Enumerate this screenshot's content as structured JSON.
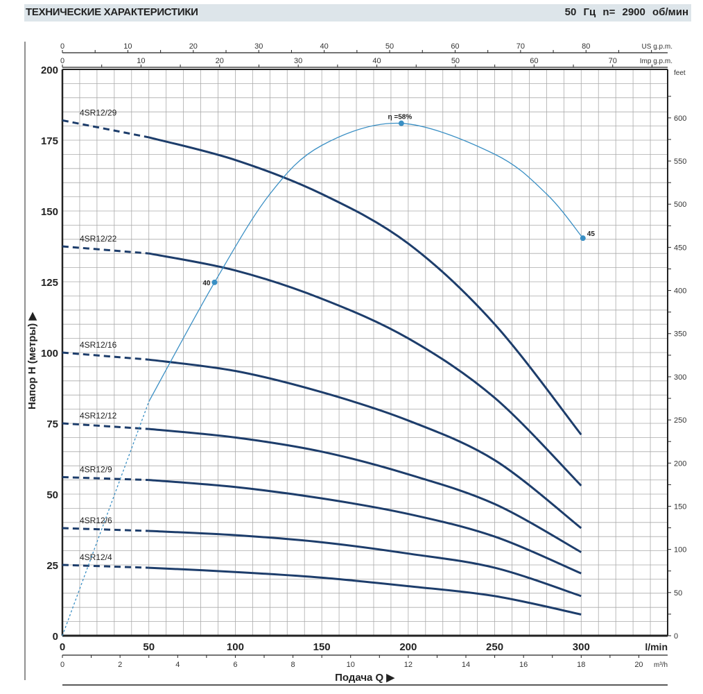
{
  "header": {
    "title": "ТЕХНИЧЕСКИЕ ХАРАКТЕРИСТИКИ",
    "subtitle": "50 Гц   n= 2900 об/мин"
  },
  "chart_data": {
    "type": "line",
    "ylabel": "Напор H (метры) ▶",
    "xlabel": "Подача Q ▶",
    "grid": true,
    "x_axis": {
      "unit": "l/min",
      "range": [
        0,
        350
      ],
      "ticks": [
        0,
        50,
        100,
        150,
        200,
        250,
        300
      ]
    },
    "y_axis": {
      "unit": "m",
      "range": [
        0,
        200
      ],
      "ticks": [
        0,
        25,
        50,
        75,
        100,
        125,
        150,
        175,
        200
      ]
    },
    "secondary_axes": {
      "us_gpm": {
        "unit": "US g.p.m.",
        "ticks": [
          0,
          10,
          20,
          30,
          40,
          50,
          60,
          70,
          80
        ]
      },
      "imp_gpm": {
        "unit": "Imp g.p.m.",
        "ticks": [
          0,
          10,
          20,
          30,
          40,
          50,
          60,
          70
        ]
      },
      "m3h": {
        "unit": "m³/h",
        "ticks": [
          0,
          2,
          4,
          6,
          8,
          10,
          12,
          14,
          16,
          18,
          20
        ]
      },
      "feet": {
        "unit": "feet",
        "ticks": [
          0,
          50,
          100,
          150,
          200,
          250,
          300,
          350,
          400,
          450,
          500,
          550,
          600
        ]
      }
    },
    "series": [
      {
        "name": "4SR12/29",
        "x": [
          0,
          50,
          100,
          150,
          200,
          250,
          300
        ],
        "y": [
          182,
          176,
          168,
          156,
          138.5,
          110,
          71
        ]
      },
      {
        "name": "4SR12/22",
        "x": [
          0,
          50,
          100,
          150,
          200,
          250,
          300
        ],
        "y": [
          137.5,
          135,
          129,
          119,
          105,
          84,
          53
        ]
      },
      {
        "name": "4SR12/16",
        "x": [
          0,
          50,
          100,
          150,
          200,
          250,
          300
        ],
        "y": [
          100,
          97.5,
          93.5,
          86,
          76,
          62,
          38
        ]
      },
      {
        "name": "4SR12/12",
        "x": [
          0,
          50,
          100,
          150,
          200,
          250,
          300
        ],
        "y": [
          75,
          73,
          70,
          65,
          57,
          46.5,
          29.5
        ]
      },
      {
        "name": "4SR12/9",
        "x": [
          0,
          50,
          100,
          150,
          200,
          250,
          300
        ],
        "y": [
          56,
          55,
          52.5,
          48.5,
          43,
          35,
          22
        ]
      },
      {
        "name": "4SR12/6",
        "x": [
          0,
          50,
          100,
          150,
          200,
          250,
          300
        ],
        "y": [
          38,
          37,
          35.5,
          33,
          29,
          24,
          14
        ]
      },
      {
        "name": "4SR12/4",
        "x": [
          0,
          50,
          100,
          150,
          200,
          250,
          300
        ],
        "y": [
          25,
          24,
          22.5,
          20.5,
          17.5,
          14,
          7.5
        ]
      }
    ],
    "dashed_until_x": 50,
    "efficiency": {
      "unit": "%",
      "x": [
        0,
        50,
        88,
        120,
        150,
        196,
        250,
        280,
        301
      ],
      "y": [
        0,
        26.5,
        40,
        50,
        55.5,
        58,
        54.5,
        50,
        45
      ],
      "labeled_points": [
        {
          "x": 88,
          "y": 40,
          "label": "40"
        },
        {
          "x": 196,
          "y": 58,
          "label": "η =58%"
        },
        {
          "x": 301,
          "y": 45,
          "label": "45"
        }
      ],
      "color": "#3a8fc4"
    },
    "curve_color": "#1d3d6b"
  }
}
